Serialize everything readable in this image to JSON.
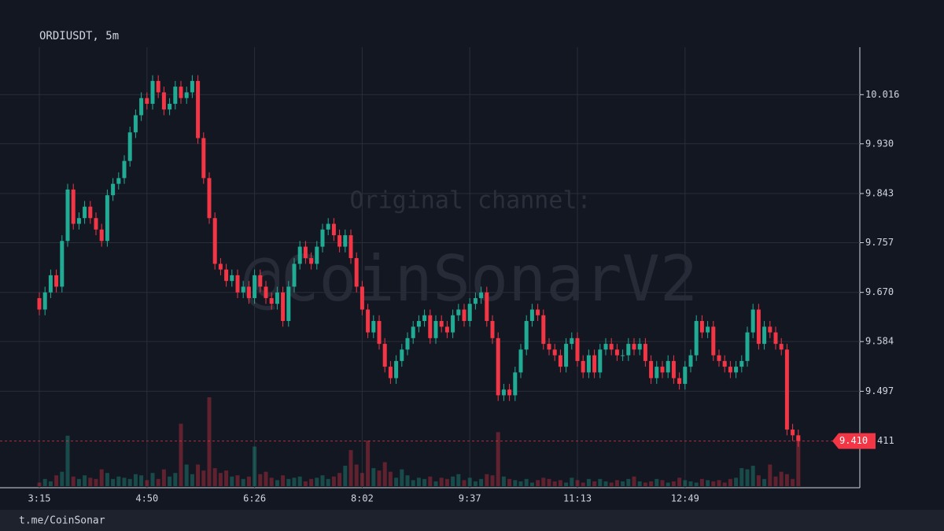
{
  "chart_data": {
    "type": "candlestick",
    "title": "ORDIUSDT, 5m",
    "watermark": [
      "Original channel:",
      "@CoinSonarV2"
    ],
    "footer": "t.me/CoinSonar",
    "up_color": "#22ab94",
    "down_color": "#f23645",
    "grid": true,
    "ylim": [
      9.331,
      10.099
    ],
    "yticks": [
      10.016,
      {
        "value": 9.93,
        "label": "9.930"
      },
      9.843,
      9.757,
      {
        "value": 9.67,
        "label": "9.670"
      },
      9.584,
      9.497
    ],
    "last_price": {
      "value": 9.41,
      "label": "9.410"
    },
    "categories": [
      "3:15",
      null,
      null,
      null,
      null,
      null,
      null,
      null,
      null,
      null,
      null,
      null,
      null,
      null,
      null,
      null,
      null,
      null,
      null,
      "4:50",
      null,
      null,
      null,
      null,
      null,
      null,
      null,
      null,
      null,
      null,
      null,
      null,
      null,
      null,
      null,
      null,
      null,
      null,
      "6:26",
      null,
      null,
      null,
      null,
      null,
      null,
      null,
      null,
      null,
      null,
      null,
      null,
      null,
      null,
      null,
      null,
      null,
      null,
      "8:02",
      null,
      null,
      null,
      null,
      null,
      null,
      null,
      null,
      null,
      null,
      null,
      null,
      null,
      null,
      null,
      null,
      null,
      null,
      "9:37",
      null,
      null,
      null,
      null,
      null,
      null,
      null,
      null,
      null,
      null,
      null,
      null,
      null,
      null,
      null,
      null,
      null,
      null,
      "11:13",
      null,
      null,
      null,
      null,
      null,
      null,
      null,
      null,
      null,
      null,
      null,
      null,
      null,
      null,
      null,
      null,
      null,
      null,
      "12:49",
      null,
      null,
      null,
      null,
      null,
      null,
      null,
      null,
      null,
      null,
      null,
      null,
      null,
      null,
      null,
      null,
      null,
      null,
      null,
      null
    ],
    "open": [
      9.66,
      9.64,
      9.67,
      9.7,
      9.68,
      9.76,
      9.85,
      9.79,
      9.8,
      9.82,
      9.8,
      9.78,
      9.76,
      9.84,
      9.86,
      9.87,
      9.9,
      9.95,
      9.98,
      10.01,
      10.0,
      10.04,
      10.02,
      9.99,
      10.0,
      10.03,
      10.01,
      10.02,
      10.04,
      9.94,
      9.87,
      9.8,
      9.72,
      9.71,
      9.69,
      9.7,
      9.67,
      9.68,
      9.66,
      9.7,
      9.68,
      9.66,
      9.65,
      9.67,
      9.62,
      9.68,
      9.72,
      9.75,
      9.73,
      9.72,
      9.75,
      9.78,
      9.79,
      9.77,
      9.75,
      9.77,
      9.73,
      9.68,
      9.64,
      9.6,
      9.62,
      9.58,
      9.54,
      9.52,
      9.55,
      9.57,
      9.59,
      9.61,
      9.62,
      9.63,
      9.59,
      9.62,
      9.61,
      9.6,
      9.63,
      9.64,
      9.62,
      9.65,
      9.66,
      9.67,
      9.62,
      9.59,
      9.49,
      9.5,
      9.49,
      9.53,
      9.57,
      9.62,
      9.64,
      9.63,
      9.58,
      9.57,
      9.56,
      9.54,
      9.58,
      9.59,
      9.55,
      9.53,
      9.56,
      9.53,
      9.57,
      9.58,
      9.57,
      9.56,
      9.56,
      9.58,
      9.57,
      9.58,
      9.55,
      9.52,
      9.54,
      9.53,
      9.55,
      9.52,
      9.51,
      9.54,
      9.56,
      9.62,
      9.6,
      9.61,
      9.56,
      9.55,
      9.54,
      9.53,
      9.54,
      9.55,
      9.6,
      9.64,
      9.58,
      9.61,
      9.6,
      9.58,
      9.57,
      9.43,
      9.42
    ],
    "high": [
      9.67,
      9.68,
      9.71,
      9.71,
      9.77,
      9.86,
      9.86,
      9.81,
      9.83,
      9.83,
      9.81,
      9.79,
      9.85,
      9.87,
      9.88,
      9.91,
      9.96,
      9.99,
      10.02,
      10.02,
      10.05,
      10.05,
      10.03,
      10.01,
      10.04,
      10.04,
      10.03,
      10.05,
      10.05,
      9.95,
      9.88,
      9.81,
      9.73,
      9.72,
      9.71,
      9.71,
      9.69,
      9.69,
      9.71,
      9.71,
      9.69,
      9.67,
      9.68,
      9.68,
      9.69,
      9.73,
      9.76,
      9.76,
      9.74,
      9.76,
      9.79,
      9.8,
      9.8,
      9.78,
      9.78,
      9.78,
      9.74,
      9.69,
      9.65,
      9.63,
      9.63,
      9.59,
      9.55,
      9.56,
      9.58,
      9.6,
      9.62,
      9.63,
      9.64,
      9.64,
      9.63,
      9.63,
      9.62,
      9.64,
      9.65,
      9.65,
      9.66,
      9.67,
      9.68,
      9.68,
      9.63,
      9.6,
      9.51,
      9.51,
      9.54,
      9.58,
      9.63,
      9.65,
      9.65,
      9.64,
      9.59,
      9.58,
      9.57,
      9.59,
      9.6,
      9.6,
      9.56,
      9.57,
      9.57,
      9.58,
      9.59,
      9.59,
      9.58,
      9.57,
      9.59,
      9.59,
      9.59,
      9.59,
      9.56,
      9.55,
      9.55,
      9.56,
      9.56,
      9.53,
      9.55,
      9.57,
      9.63,
      9.63,
      9.62,
      9.62,
      9.57,
      9.56,
      9.55,
      9.55,
      9.56,
      9.61,
      9.65,
      9.65,
      9.62,
      9.62,
      9.61,
      9.59,
      9.58,
      9.44,
      9.43
    ],
    "low": [
      9.63,
      9.63,
      9.66,
      9.67,
      9.67,
      9.75,
      9.78,
      9.78,
      9.79,
      9.79,
      9.77,
      9.75,
      9.75,
      9.83,
      9.85,
      9.86,
      9.89,
      9.94,
      9.97,
      9.99,
      9.99,
      10.01,
      9.98,
      9.98,
      9.99,
      10.0,
      10.0,
      10.01,
      9.93,
      9.86,
      9.79,
      9.71,
      9.7,
      9.68,
      9.68,
      9.66,
      9.66,
      9.65,
      9.65,
      9.67,
      9.65,
      9.64,
      9.64,
      9.61,
      9.61,
      9.67,
      9.71,
      9.72,
      9.71,
      9.71,
      9.74,
      9.77,
      9.76,
      9.74,
      9.74,
      9.72,
      9.67,
      9.63,
      9.59,
      9.59,
      9.57,
      9.53,
      9.51,
      9.51,
      9.54,
      9.56,
      9.58,
      9.6,
      9.61,
      9.58,
      9.58,
      9.6,
      9.59,
      9.59,
      9.62,
      9.61,
      9.61,
      9.64,
      9.65,
      9.61,
      9.58,
      9.48,
      9.48,
      9.48,
      9.48,
      9.52,
      9.56,
      9.61,
      9.62,
      9.57,
      9.56,
      9.55,
      9.53,
      9.53,
      9.57,
      9.54,
      9.52,
      9.52,
      9.52,
      9.52,
      9.56,
      9.56,
      9.55,
      9.55,
      9.55,
      9.56,
      9.56,
      9.54,
      9.51,
      9.51,
      9.52,
      9.52,
      9.51,
      9.5,
      9.5,
      9.53,
      9.55,
      9.59,
      9.59,
      9.55,
      9.54,
      9.53,
      9.52,
      9.52,
      9.53,
      9.54,
      9.59,
      9.57,
      9.57,
      9.59,
      9.57,
      9.56,
      9.42,
      9.41,
      9.4
    ],
    "close": [
      9.64,
      9.67,
      9.7,
      9.68,
      9.76,
      9.85,
      9.79,
      9.8,
      9.82,
      9.8,
      9.78,
      9.76,
      9.84,
      9.86,
      9.87,
      9.9,
      9.95,
      9.98,
      10.01,
      10.0,
      10.04,
      10.02,
      9.99,
      10.0,
      10.03,
      10.01,
      10.02,
      10.04,
      9.94,
      9.87,
      9.8,
      9.72,
      9.71,
      9.69,
      9.7,
      9.67,
      9.68,
      9.66,
      9.7,
      9.68,
      9.66,
      9.65,
      9.67,
      9.62,
      9.68,
      9.72,
      9.75,
      9.73,
      9.72,
      9.75,
      9.78,
      9.79,
      9.77,
      9.75,
      9.77,
      9.73,
      9.68,
      9.64,
      9.6,
      9.62,
      9.58,
      9.54,
      9.52,
      9.55,
      9.57,
      9.59,
      9.61,
      9.62,
      9.63,
      9.59,
      9.62,
      9.61,
      9.6,
      9.63,
      9.64,
      9.62,
      9.65,
      9.66,
      9.67,
      9.62,
      9.59,
      9.49,
      9.5,
      9.49,
      9.53,
      9.57,
      9.62,
      9.64,
      9.63,
      9.58,
      9.57,
      9.56,
      9.54,
      9.58,
      9.59,
      9.55,
      9.53,
      9.56,
      9.53,
      9.57,
      9.58,
      9.57,
      9.56,
      9.56,
      9.58,
      9.57,
      9.58,
      9.55,
      9.52,
      9.54,
      9.53,
      9.55,
      9.52,
      9.51,
      9.54,
      9.56,
      9.62,
      9.6,
      9.61,
      9.56,
      9.55,
      9.54,
      9.53,
      9.54,
      9.55,
      9.6,
      9.64,
      9.58,
      9.61,
      9.6,
      9.58,
      9.57,
      9.43,
      9.42,
      9.41
    ],
    "volumes": [
      30,
      60,
      40,
      90,
      120,
      420,
      80,
      60,
      90,
      70,
      60,
      140,
      110,
      60,
      80,
      70,
      60,
      100,
      90,
      50,
      110,
      60,
      140,
      80,
      110,
      520,
      180,
      100,
      180,
      130,
      740,
      150,
      110,
      130,
      80,
      90,
      60,
      80,
      330,
      100,
      120,
      70,
      50,
      90,
      60,
      70,
      80,
      40,
      60,
      70,
      90,
      60,
      80,
      110,
      170,
      300,
      180,
      110,
      380,
      150,
      130,
      200,
      120,
      70,
      140,
      90,
      50,
      70,
      60,
      80,
      40,
      70,
      60,
      80,
      100,
      50,
      70,
      40,
      60,
      100,
      90,
      450,
      80,
      60,
      50,
      40,
      60,
      30,
      50,
      70,
      60,
      40,
      50,
      30,
      70,
      50,
      30,
      60,
      40,
      60,
      40,
      30,
      50,
      40,
      60,
      80,
      40,
      30,
      40,
      60,
      50,
      30,
      40,
      70,
      50,
      40,
      30,
      60,
      50,
      40,
      50,
      30,
      60,
      70,
      150,
      140,
      170,
      90,
      60,
      180,
      80,
      120,
      100,
      60,
      411
    ]
  }
}
